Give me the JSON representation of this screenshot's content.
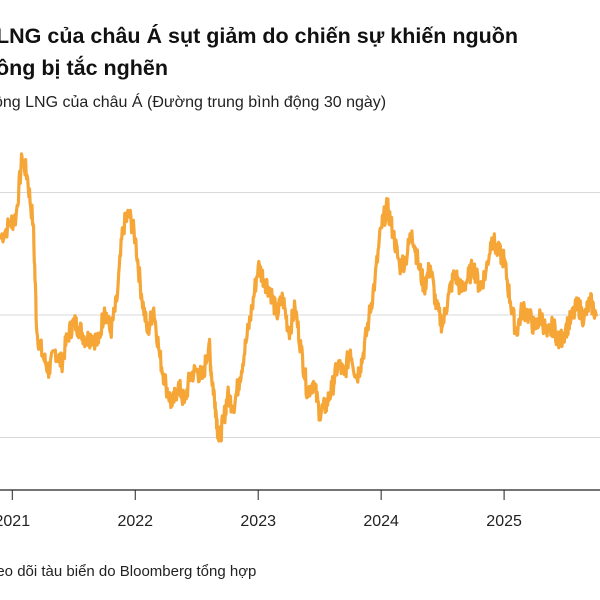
{
  "header": {
    "title": "LNG của châu Á sụt giảm do chiến sự khiến nguồn\nông bị tắc nghẽn",
    "subtitle": "ồng LNG của châu Á (Đường trung bình động 30 ngày)"
  },
  "footer": {
    "source": "heo dõi tàu biển do Bloomberg tổng hợp"
  },
  "colors": {
    "line": "#F5A637",
    "grid": "#D9D9D9",
    "axis": "#222222"
  },
  "chart_data": {
    "type": "line",
    "title": "LNG của châu Á sụt giảm do chiến sự khiến nguồn ông bị tắc nghẽn",
    "subtitle": "ồng LNG của châu Á (Đường trung bình động 30 ngày)",
    "xlabel": "",
    "ylabel": "",
    "x_range": [
      2020.9,
      2025.78
    ],
    "ylim": [
      0,
      100
    ],
    "y_gridlines": [
      15,
      50,
      85
    ],
    "y_tick_labels_visible": false,
    "x_ticks": [
      {
        "value": 2021,
        "label": "2021"
      },
      {
        "value": 2022,
        "label": "2022"
      },
      {
        "value": 2023,
        "label": "2023"
      },
      {
        "value": 2024,
        "label": "2024"
      },
      {
        "value": 2025,
        "label": "2025"
      }
    ],
    "series": [
      {
        "points": [
          [
            2020.9,
            72
          ],
          [
            2020.98,
            76
          ],
          [
            2021.03,
            78
          ],
          [
            2021.08,
            95
          ],
          [
            2021.12,
            90
          ],
          [
            2021.17,
            76
          ],
          [
            2021.2,
            45
          ],
          [
            2021.25,
            38
          ],
          [
            2021.3,
            34
          ],
          [
            2021.35,
            40
          ],
          [
            2021.4,
            36
          ],
          [
            2021.45,
            44
          ],
          [
            2021.5,
            48
          ],
          [
            2021.55,
            46
          ],
          [
            2021.6,
            43
          ],
          [
            2021.65,
            44
          ],
          [
            2021.7,
            42
          ],
          [
            2021.75,
            52
          ],
          [
            2021.8,
            45
          ],
          [
            2021.85,
            54
          ],
          [
            2021.9,
            75
          ],
          [
            2021.95,
            79
          ],
          [
            2022.0,
            72
          ],
          [
            2022.05,
            56
          ],
          [
            2022.1,
            45
          ],
          [
            2022.15,
            52
          ],
          [
            2022.2,
            38
          ],
          [
            2022.25,
            30
          ],
          [
            2022.3,
            24
          ],
          [
            2022.35,
            30
          ],
          [
            2022.4,
            25
          ],
          [
            2022.45,
            33
          ],
          [
            2022.5,
            34
          ],
          [
            2022.55,
            32
          ],
          [
            2022.6,
            42
          ],
          [
            2022.62,
            33
          ],
          [
            2022.65,
            25
          ],
          [
            2022.68,
            14
          ],
          [
            2022.72,
            20
          ],
          [
            2022.75,
            27
          ],
          [
            2022.8,
            24
          ],
          [
            2022.85,
            32
          ],
          [
            2022.9,
            42
          ],
          [
            2022.95,
            52
          ],
          [
            2023.0,
            64
          ],
          [
            2023.05,
            60
          ],
          [
            2023.1,
            57
          ],
          [
            2023.15,
            50
          ],
          [
            2023.2,
            55
          ],
          [
            2023.25,
            45
          ],
          [
            2023.3,
            52
          ],
          [
            2023.35,
            40
          ],
          [
            2023.4,
            28
          ],
          [
            2023.45,
            31
          ],
          [
            2023.5,
            22
          ],
          [
            2023.55,
            24
          ],
          [
            2023.6,
            29
          ],
          [
            2023.65,
            36
          ],
          [
            2023.7,
            33
          ],
          [
            2023.75,
            40
          ],
          [
            2023.8,
            32
          ],
          [
            2023.85,
            38
          ],
          [
            2023.9,
            49
          ],
          [
            2023.95,
            60
          ],
          [
            2024.0,
            75
          ],
          [
            2024.05,
            81
          ],
          [
            2024.1,
            73
          ],
          [
            2024.15,
            64
          ],
          [
            2024.2,
            66
          ],
          [
            2024.25,
            74
          ],
          [
            2024.3,
            65
          ],
          [
            2024.35,
            58
          ],
          [
            2024.4,
            64
          ],
          [
            2024.45,
            52
          ],
          [
            2024.5,
            47
          ],
          [
            2024.55,
            56
          ],
          [
            2024.6,
            62
          ],
          [
            2024.65,
            57
          ],
          [
            2024.7,
            60
          ],
          [
            2024.75,
            64
          ],
          [
            2024.8,
            58
          ],
          [
            2024.85,
            62
          ],
          [
            2024.9,
            72
          ],
          [
            2024.95,
            68
          ],
          [
            2025.0,
            66
          ],
          [
            2025.05,
            54
          ],
          [
            2025.1,
            45
          ],
          [
            2025.15,
            52
          ],
          [
            2025.2,
            50
          ],
          [
            2025.25,
            46
          ],
          [
            2025.3,
            50
          ],
          [
            2025.35,
            44
          ],
          [
            2025.4,
            47
          ],
          [
            2025.45,
            42
          ],
          [
            2025.5,
            46
          ],
          [
            2025.55,
            49
          ],
          [
            2025.6,
            53
          ],
          [
            2025.65,
            49
          ],
          [
            2025.7,
            54
          ],
          [
            2025.75,
            50
          ]
        ]
      }
    ]
  }
}
